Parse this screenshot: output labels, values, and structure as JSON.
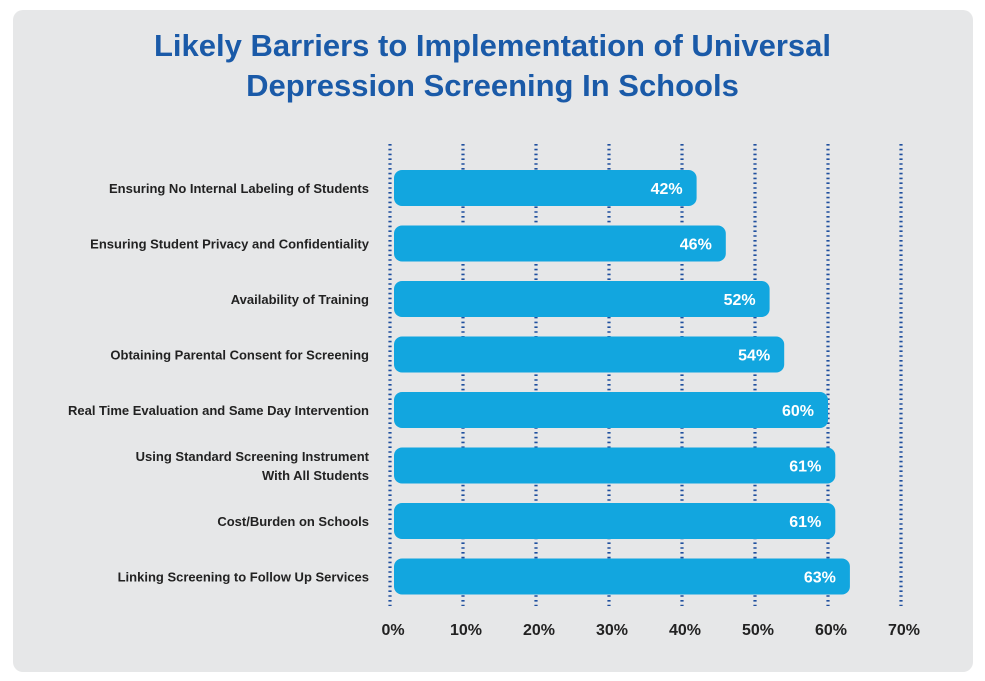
{
  "chart_data": {
    "type": "bar",
    "orientation": "horizontal",
    "title": "Likely Barriers to Implementation of Universal Depression Screening In Schools",
    "title_lines": [
      "Likely Barriers to Implementation of Universal",
      "Depression Screening In Schools"
    ],
    "categories": [
      [
        "Ensuring No Internal Labeling of Students"
      ],
      [
        "Ensuring Student Privacy and Confidentiality"
      ],
      [
        "Availability of Training"
      ],
      [
        "Obtaining Parental Consent for Screening"
      ],
      [
        "Real Time Evaluation and Same Day Intervention"
      ],
      [
        "Using Standard Screening Instrument",
        "With All Students"
      ],
      [
        "Cost/Burden on Schools"
      ],
      [
        "Linking Screening to Follow Up Services"
      ]
    ],
    "values": [
      42,
      46,
      52,
      54,
      60,
      61,
      61,
      63
    ],
    "value_labels": [
      "42%",
      "46%",
      "52%",
      "54%",
      "60%",
      "61%",
      "61%",
      "63%"
    ],
    "xlim": [
      0,
      70
    ],
    "xticks": [
      0,
      10,
      20,
      30,
      40,
      50,
      60,
      70
    ],
    "xtick_labels": [
      "0%",
      "10%",
      "20%",
      "30%",
      "40%",
      "50%",
      "60%",
      "70%"
    ],
    "grid": "vertical dotted",
    "legend": "none",
    "colors": {
      "bar": "#12a6df",
      "grid": "#1f4f9e",
      "title": "#1a5aa8",
      "background": "#e6e7e8"
    }
  }
}
